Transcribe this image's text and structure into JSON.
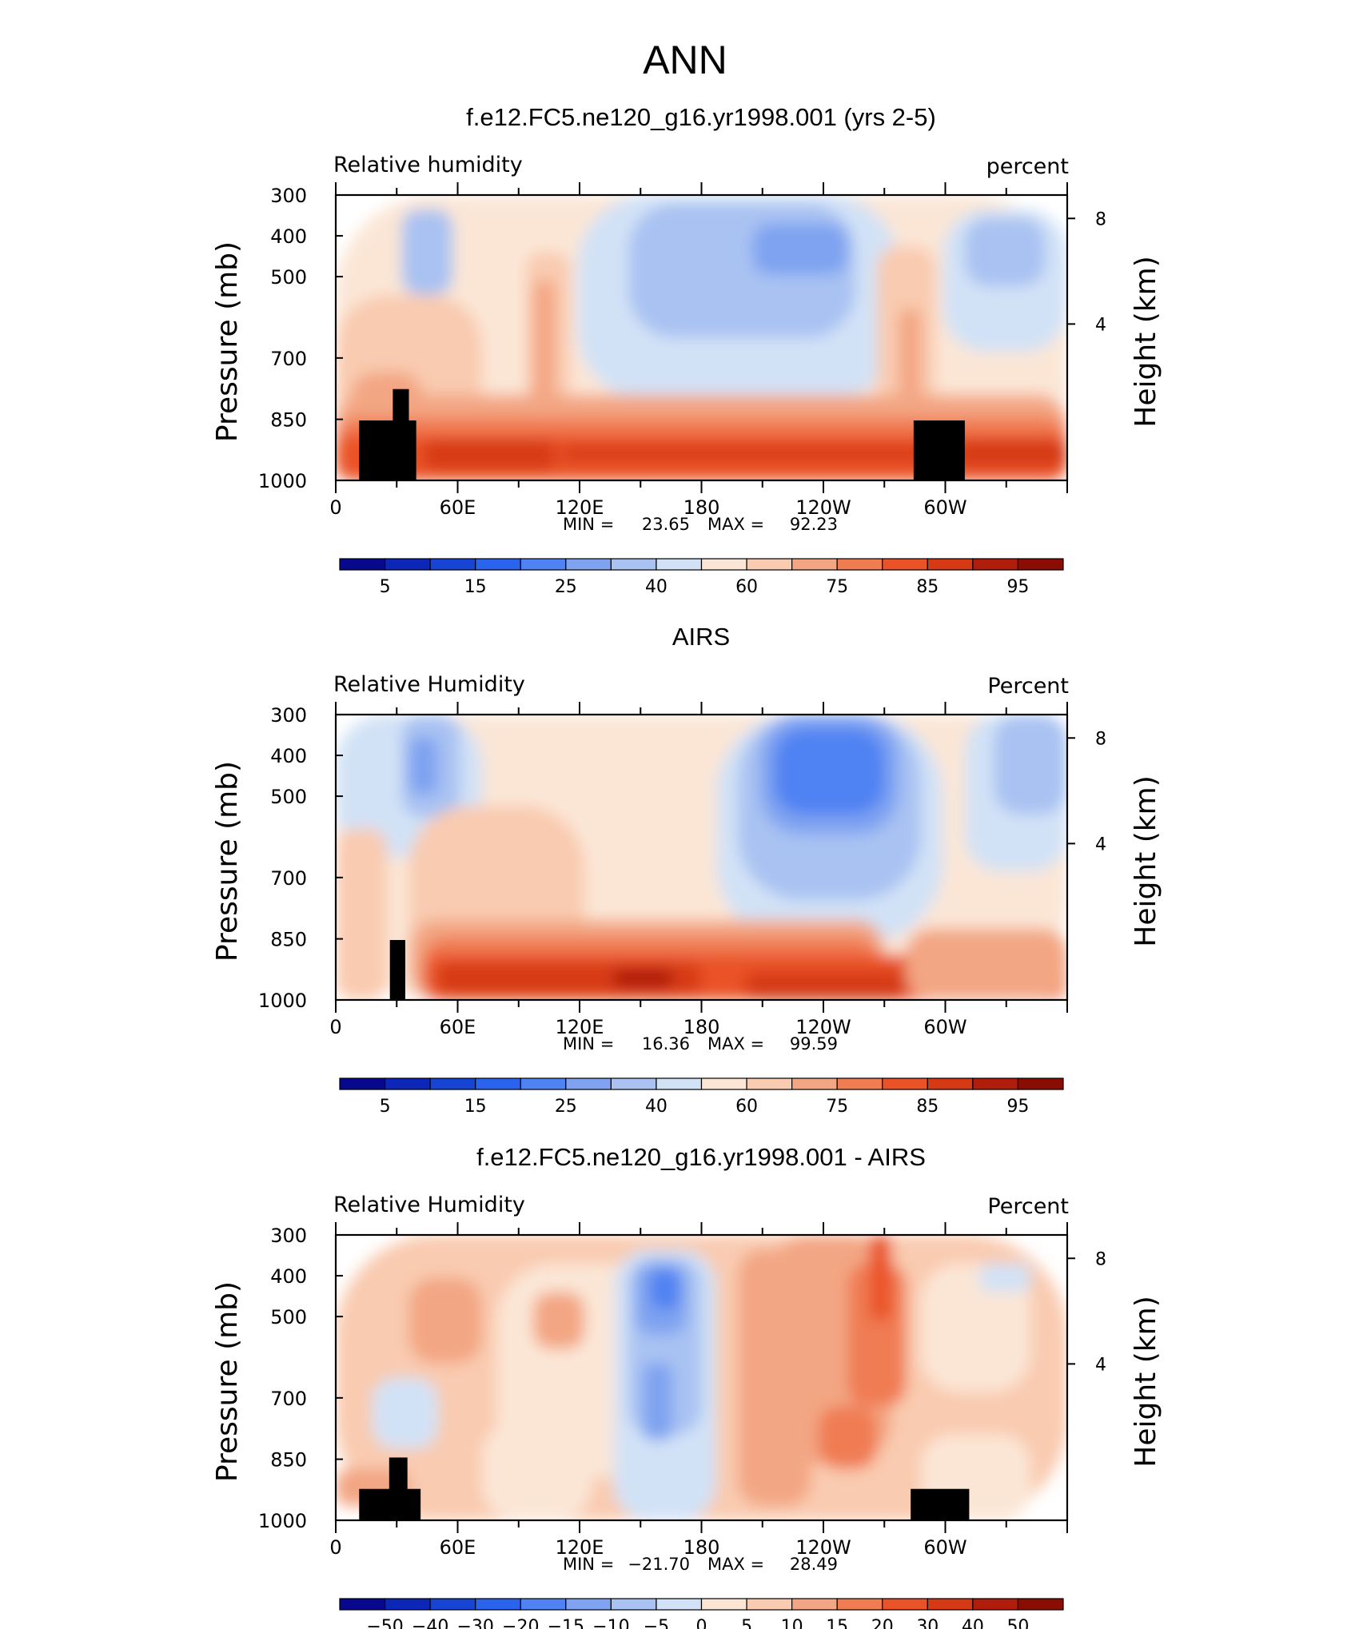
{
  "page_title": "ANN",
  "chart_data": [
    {
      "type": "heatmap",
      "title": "f.e12.FC5.ne120_g16.yr1998.001 (yrs 2-5)",
      "left_label": "Relative humidity",
      "right_label": "percent",
      "ylabel": "Pressure (mb)",
      "ylabel_right": "Height (km)",
      "y_ticks": [
        "300",
        "400",
        "500",
        "700",
        "850",
        "1000"
      ],
      "y_right_ticks": [
        "8",
        "4"
      ],
      "x_ticks": [
        "0",
        "60E",
        "120E",
        "180",
        "120W",
        "60W"
      ],
      "min_label": "MIN =",
      "min_value": "23.65",
      "max_label": "MAX =",
      "max_value": "92.23",
      "colorbar_ticks": [
        "5",
        "15",
        "25",
        "40",
        "60",
        "75",
        "85",
        "95"
      ],
      "x_range": [
        0,
        360
      ],
      "y_range": [
        1000,
        300
      ],
      "grid": false
    },
    {
      "type": "heatmap",
      "title": "AIRS",
      "left_label": "Relative Humidity",
      "right_label": "Percent",
      "ylabel": "Pressure (mb)",
      "ylabel_right": "Height (km)",
      "y_ticks": [
        "300",
        "400",
        "500",
        "700",
        "850",
        "1000"
      ],
      "y_right_ticks": [
        "8",
        "4"
      ],
      "x_ticks": [
        "0",
        "60E",
        "120E",
        "180",
        "120W",
        "60W"
      ],
      "min_label": "MIN =",
      "min_value": "16.36",
      "max_label": "MAX =",
      "max_value": "99.59",
      "colorbar_ticks": [
        "5",
        "15",
        "25",
        "40",
        "60",
        "75",
        "85",
        "95"
      ],
      "x_range": [
        0,
        360
      ],
      "y_range": [
        1000,
        300
      ],
      "grid": false
    },
    {
      "type": "heatmap",
      "title": "f.e12.FC5.ne120_g16.yr1998.001 - AIRS",
      "left_label": "Relative Humidity",
      "right_label": "Percent",
      "ylabel": "Pressure (mb)",
      "ylabel_right": "Height (km)",
      "y_ticks": [
        "300",
        "400",
        "500",
        "700",
        "850",
        "1000"
      ],
      "y_right_ticks": [
        "8",
        "4"
      ],
      "x_ticks": [
        "0",
        "60E",
        "120E",
        "180",
        "120W",
        "60W"
      ],
      "min_label": "MIN =",
      "min_value": "−21.70",
      "max_label": "MAX =",
      "max_value": "28.49",
      "colorbar_ticks": [
        "−50",
        "−40",
        "−30",
        "−20",
        "−15",
        "−10",
        "−5",
        "0",
        "5",
        "10",
        "15",
        "20",
        "30",
        "40",
        "50"
      ],
      "x_range": [
        0,
        360
      ],
      "y_range": [
        1000,
        300
      ],
      "grid": false
    }
  ],
  "colormap": [
    "#08088e",
    "#0c26b8",
    "#1645d6",
    "#2a64ee",
    "#4f82f2",
    "#7fa3f1",
    "#a9c2f2",
    "#d2e2f6",
    "#fbe6d6",
    "#f9cbb0",
    "#f3a683",
    "#f07c52",
    "#ea5328",
    "#d63a14",
    "#b01d0a",
    "#8a0d04"
  ]
}
